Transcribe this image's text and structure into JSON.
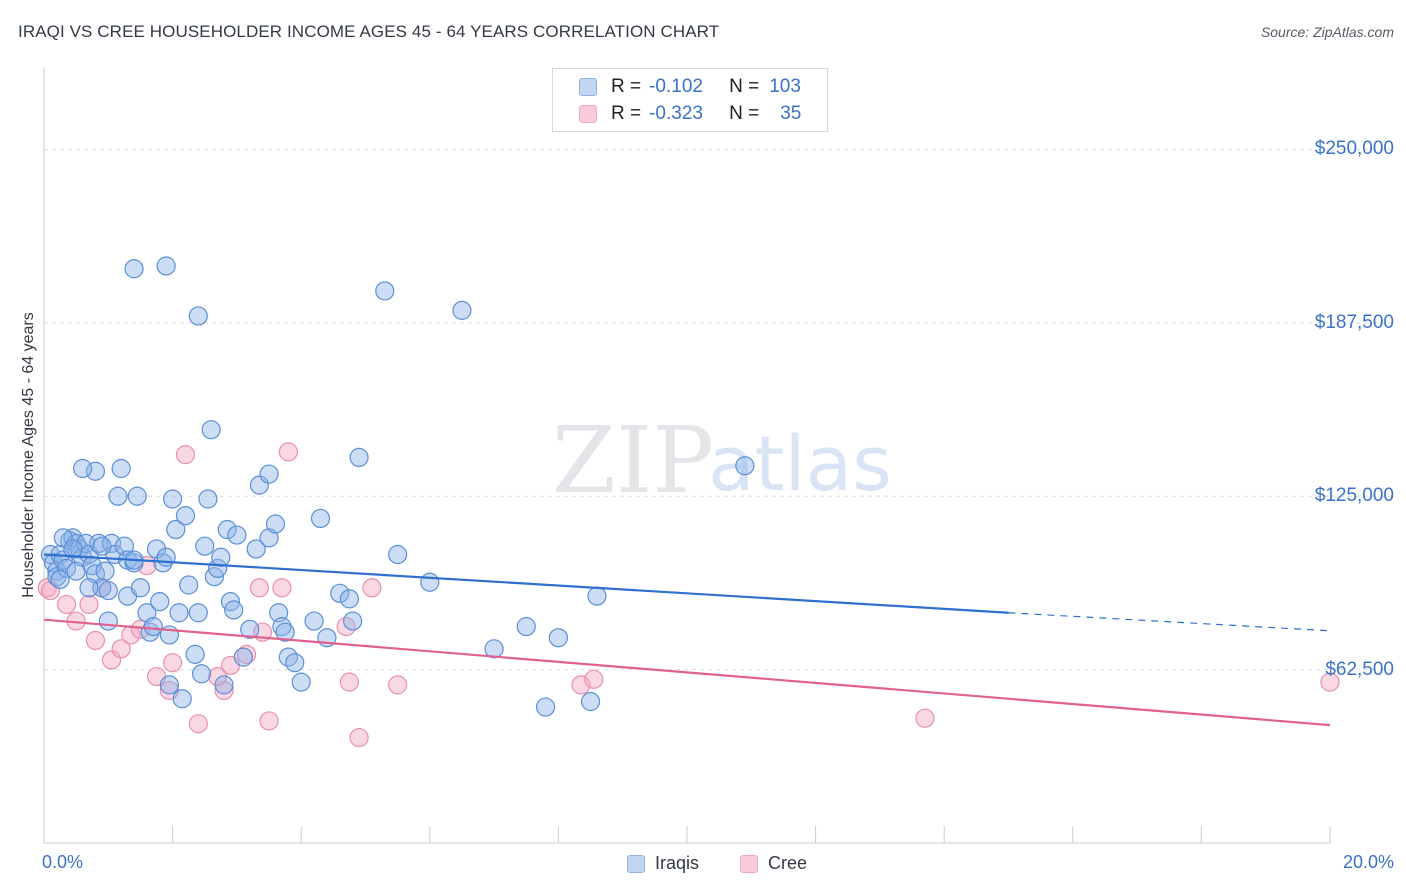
{
  "title": "IRAQI VS CREE HOUSEHOLDER INCOME AGES 45 - 64 YEARS CORRELATION CHART",
  "source": "Source: ZipAtlas.com",
  "watermark": {
    "zip": "ZIP",
    "atlas": "atlas"
  },
  "colors": {
    "iraqis": "#8fb4e8",
    "iraqis_line": "#2f6fd0",
    "cree": "#f5a9c1",
    "cree_line": "#e0608f",
    "accent": "#3b72c8"
  },
  "legend": {
    "iraqis": {
      "r_label": "R =",
      "r_value": "-0.102",
      "n_label": "N =",
      "n_value": "103"
    },
    "cree": {
      "r_label": "R =",
      "r_value": "-0.323",
      "n_label": "N =",
      "n_value": "35"
    }
  },
  "bottom_legend": {
    "iraqis": "Iraqis",
    "cree": "Cree"
  },
  "chart_data": {
    "type": "scatter",
    "title": "IRAQI VS CREE HOUSEHOLDER INCOME AGES 45 - 64 YEARS CORRELATION CHART",
    "xlabel": "",
    "ylabel": "Householder Income Ages 45 - 64 years",
    "xlim": [
      0,
      20
    ],
    "ylim": [
      0,
      270000
    ],
    "x_tick_labels": [
      "0.0%",
      "20.0%"
    ],
    "y_ticks": [
      62500,
      125000,
      187500,
      250000
    ],
    "y_tick_labels": [
      "$62,500",
      "$125,000",
      "$187,500",
      "$250,000"
    ],
    "series": [
      {
        "name": "Iraqis",
        "r": -0.102,
        "n": 103,
        "trend": {
          "x0": 0,
          "y0": 104000,
          "x1": 15,
          "y1": 83000,
          "dash_to_x": 20,
          "dash_to_y": 76500
        },
        "points": [
          [
            0.1,
            104
          ],
          [
            0.15,
            101
          ],
          [
            0.2,
            98
          ],
          [
            0.2,
            96
          ],
          [
            0.25,
            104
          ],
          [
            0.3,
            102
          ],
          [
            0.35,
            99
          ],
          [
            0.4,
            109
          ],
          [
            0.45,
            110
          ],
          [
            0.5,
            108
          ],
          [
            0.5,
            98
          ],
          [
            0.55,
            106
          ],
          [
            0.6,
            103
          ],
          [
            0.65,
            108
          ],
          [
            0.7,
            104
          ],
          [
            0.75,
            100
          ],
          [
            0.8,
            97
          ],
          [
            0.85,
            108
          ],
          [
            0.9,
            92
          ],
          [
            0.95,
            98
          ],
          [
            1.0,
            91
          ],
          [
            1.0,
            80
          ],
          [
            1.05,
            108
          ],
          [
            1.1,
            104
          ],
          [
            1.15,
            125
          ],
          [
            1.2,
            135
          ],
          [
            1.25,
            107
          ],
          [
            1.3,
            102
          ],
          [
            1.3,
            89
          ],
          [
            1.4,
            101
          ],
          [
            1.4,
            102
          ],
          [
            1.45,
            125
          ],
          [
            1.5,
            92
          ],
          [
            1.6,
            83
          ],
          [
            1.65,
            76
          ],
          [
            1.7,
            78
          ],
          [
            1.75,
            106
          ],
          [
            1.8,
            87
          ],
          [
            1.85,
            101
          ],
          [
            1.9,
            103
          ],
          [
            1.95,
            75
          ],
          [
            1.95,
            57
          ],
          [
            2.0,
            124
          ],
          [
            2.05,
            113
          ],
          [
            2.1,
            83
          ],
          [
            2.15,
            52
          ],
          [
            2.2,
            118
          ],
          [
            2.25,
            93
          ],
          [
            2.35,
            68
          ],
          [
            2.4,
            83
          ],
          [
            2.45,
            61
          ],
          [
            2.5,
            107
          ],
          [
            2.55,
            124
          ],
          [
            2.6,
            149
          ],
          [
            2.65,
            96
          ],
          [
            2.7,
            99
          ],
          [
            2.75,
            103
          ],
          [
            2.8,
            57
          ],
          [
            2.85,
            113
          ],
          [
            2.9,
            87
          ],
          [
            2.95,
            84
          ],
          [
            3.0,
            111
          ],
          [
            3.1,
            67
          ],
          [
            3.2,
            77
          ],
          [
            3.3,
            106
          ],
          [
            3.35,
            129
          ],
          [
            3.5,
            133
          ],
          [
            3.5,
            110
          ],
          [
            3.6,
            115
          ],
          [
            3.65,
            83
          ],
          [
            3.7,
            78
          ],
          [
            3.75,
            76
          ],
          [
            3.8,
            67
          ],
          [
            3.9,
            65
          ],
          [
            4.0,
            58
          ],
          [
            4.2,
            80
          ],
          [
            4.3,
            117
          ],
          [
            4.4,
            74
          ],
          [
            4.6,
            90
          ],
          [
            4.75,
            88
          ],
          [
            4.8,
            80
          ],
          [
            4.9,
            139
          ],
          [
            5.5,
            104
          ],
          [
            6.0,
            94
          ],
          [
            7.0,
            70
          ],
          [
            7.5,
            78
          ],
          [
            7.8,
            49
          ],
          [
            8.0,
            74
          ],
          [
            8.5,
            51
          ],
          [
            8.6,
            89
          ],
          [
            10.9,
            136
          ],
          [
            1.4,
            207
          ],
          [
            1.9,
            208
          ],
          [
            2.4,
            190
          ],
          [
            5.3,
            199
          ],
          [
            6.5,
            192
          ],
          [
            0.8,
            134
          ],
          [
            0.6,
            135
          ],
          [
            0.3,
            110
          ],
          [
            0.25,
            95
          ],
          [
            0.7,
            92
          ],
          [
            0.45,
            106
          ],
          [
            0.9,
            107
          ]
        ]
      },
      {
        "name": "Cree",
        "r": -0.323,
        "n": 35,
        "trend": {
          "x0": 0,
          "y0": 80500,
          "x1": 20,
          "y1": 42500
        },
        "points": [
          [
            0.05,
            92
          ],
          [
            0.1,
            91
          ],
          [
            0.35,
            86
          ],
          [
            0.5,
            80
          ],
          [
            0.7,
            86
          ],
          [
            0.8,
            73
          ],
          [
            0.9,
            92
          ],
          [
            1.05,
            66
          ],
          [
            1.2,
            70
          ],
          [
            1.35,
            75
          ],
          [
            1.5,
            77
          ],
          [
            1.6,
            100
          ],
          [
            1.75,
            60
          ],
          [
            1.95,
            55
          ],
          [
            2.0,
            65
          ],
          [
            2.2,
            140
          ],
          [
            2.4,
            43
          ],
          [
            2.7,
            60
          ],
          [
            2.8,
            55
          ],
          [
            2.9,
            64
          ],
          [
            3.15,
            68
          ],
          [
            3.35,
            92
          ],
          [
            3.4,
            76
          ],
          [
            3.5,
            44
          ],
          [
            3.7,
            92
          ],
          [
            3.8,
            141
          ],
          [
            4.7,
            78
          ],
          [
            4.75,
            58
          ],
          [
            4.9,
            38
          ],
          [
            5.1,
            92
          ],
          [
            5.5,
            57
          ],
          [
            8.35,
            57
          ],
          [
            8.55,
            59
          ],
          [
            13.7,
            45
          ],
          [
            20.0,
            58
          ]
        ]
      }
    ],
    "y_units_note": "point y values in thousands of dollars"
  }
}
